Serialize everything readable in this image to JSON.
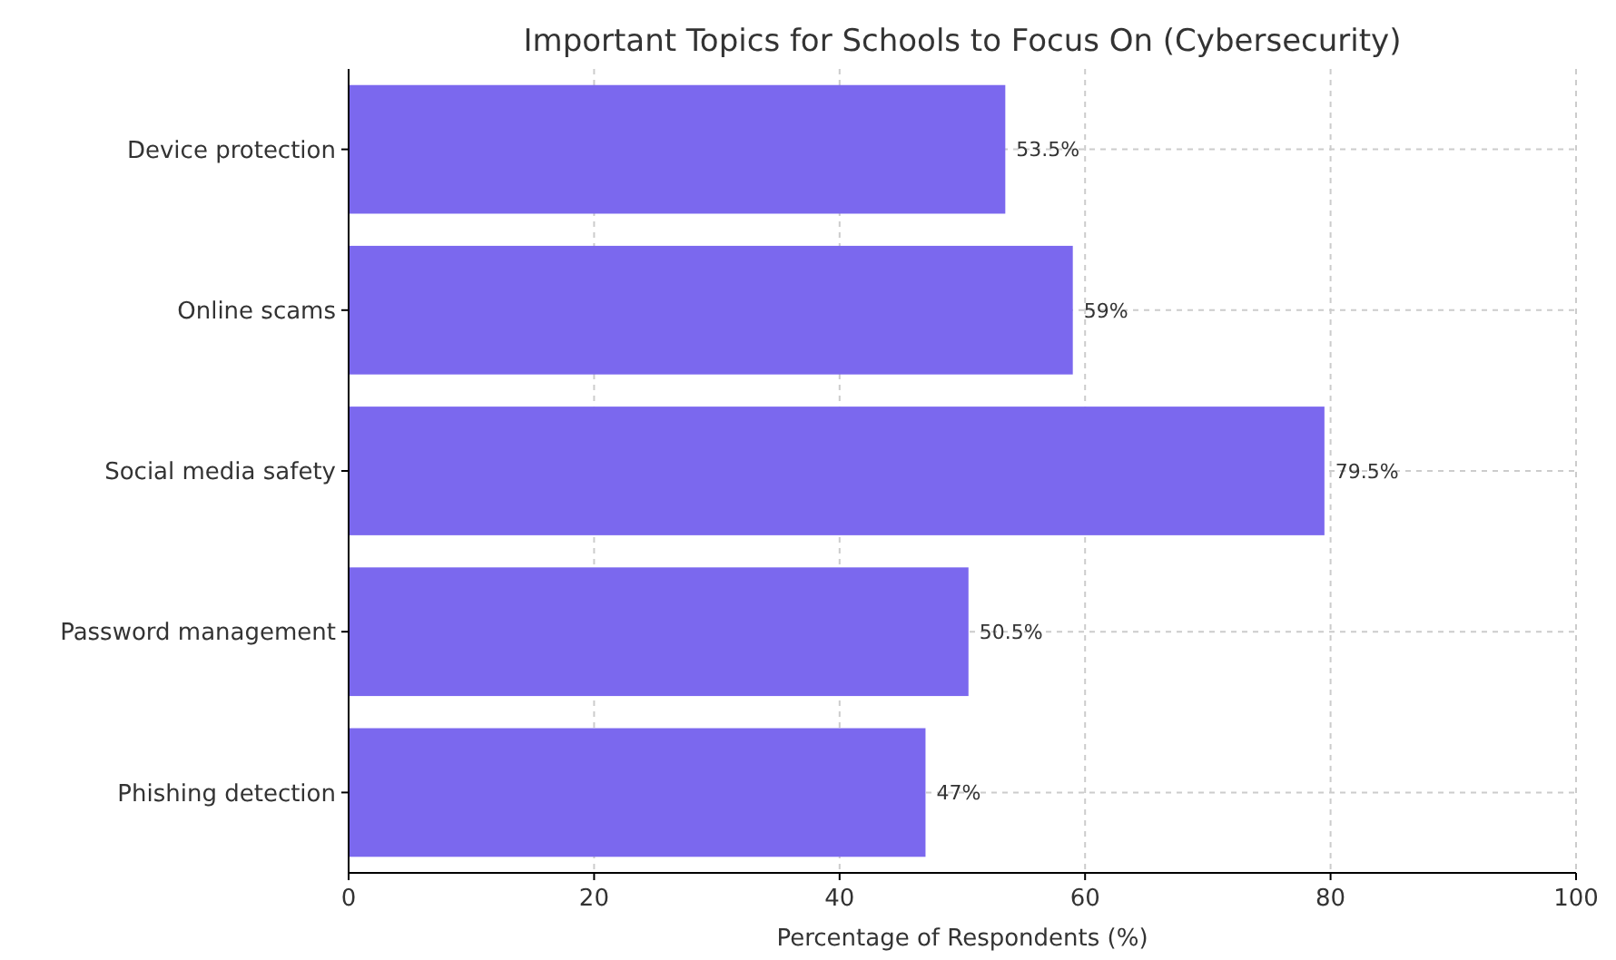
{
  "chart_data": {
    "type": "bar",
    "orientation": "horizontal",
    "title": "Important Topics for Schools to Focus On (Cybersecurity)",
    "xlabel": "Percentage of Respondents (%)",
    "categories": [
      "Device protection",
      "Online scams",
      "Social media safety",
      "Password management",
      "Phishing detection"
    ],
    "values": [
      53.5,
      59,
      79.5,
      50.5,
      47
    ],
    "value_labels": [
      "53.5%",
      "59%",
      "79.5%",
      "50.5%",
      "47%"
    ],
    "color": "#7b68ee",
    "xlim": [
      0,
      100
    ],
    "xticks": [
      0,
      20,
      40,
      60,
      80,
      100
    ],
    "grid": true
  }
}
